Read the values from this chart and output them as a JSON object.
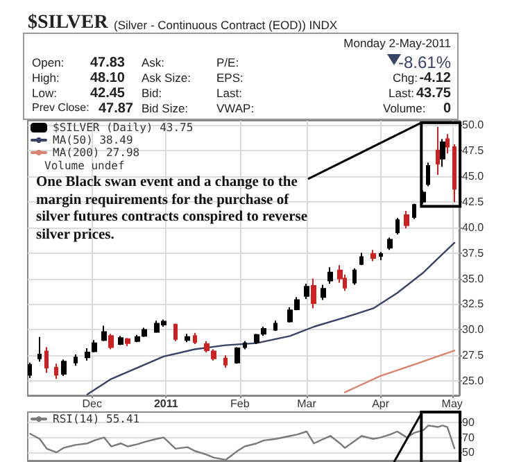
{
  "chart_data": [
    {
      "type": "candlestick",
      "title": "$SILVER",
      "subtitle": "(Silver - Continuous Contract (EOD)) INDX",
      "x": [
        "2010-11-05",
        "2010-11-09",
        "2010-11-12",
        "2010-11-16",
        "2010-11-19",
        "2010-11-24",
        "2010-11-29",
        "2010-12-02",
        "2010-12-06",
        "2010-12-09",
        "2010-12-13",
        "2010-12-16",
        "2010-12-20",
        "2010-12-23",
        "2010-12-28",
        "2010-12-31",
        "2011-01-05",
        "2011-01-10",
        "2011-01-13",
        "2011-01-18",
        "2011-01-21",
        "2011-01-26",
        "2011-01-31",
        "2011-02-03",
        "2011-02-08",
        "2011-02-11",
        "2011-02-16",
        "2011-02-22",
        "2011-02-25",
        "2011-03-01",
        "2011-03-04",
        "2011-03-08",
        "2011-03-11",
        "2011-03-15",
        "2011-03-17",
        "2011-03-21",
        "2011-03-24",
        "2011-03-29",
        "2011-04-01",
        "2011-04-05",
        "2011-04-08",
        "2011-04-12",
        "2011-04-15",
        "2011-04-19",
        "2011-04-21",
        "2011-04-25",
        "2011-04-27",
        "2011-04-29",
        "2011-05-02"
      ],
      "series": [
        {
          "name": "$SILVER (Daily) 43.75",
          "type": "candlestick",
          "colors": [
            "#000000",
            "#000000",
            "#cc2222",
            "#cc2222",
            "#000000",
            "#000000",
            "#000000",
            "#000000",
            "#000000",
            "#cc2222",
            "#000000",
            "#cc2222",
            "#000000",
            "#000000",
            "#000000",
            "#000000",
            "#cc2222",
            "#000000",
            "#cc2222",
            "#cc2222",
            "#cc2222",
            "#cc2222",
            "#000000",
            "#000000",
            "#000000",
            "#000000",
            "#000000",
            "#000000",
            "#000000",
            "#000000",
            "#cc2222",
            "#000000",
            "#000000",
            "#cc2222",
            "#cc2222",
            "#000000",
            "#000000",
            "#cc2222",
            "#000000",
            "#000000",
            "#000000",
            "#cc2222",
            "#000000",
            "#000000",
            "#000000",
            "#cc2222",
            "#000000",
            "#cc2222",
            "#cc2222"
          ],
          "ohlc": [
            [
              25.6,
              26.8,
              25.3,
              26.6
            ],
            [
              27.2,
              29.3,
              26.9,
              27.6
            ],
            [
              27.9,
              28.3,
              25.8,
              26.3
            ],
            [
              26.3,
              26.7,
              25.2,
              25.6
            ],
            [
              25.7,
              27.1,
              25.5,
              26.9
            ],
            [
              26.8,
              27.6,
              26.5,
              27.3
            ],
            [
              27.3,
              28.2,
              27.0,
              27.8
            ],
            [
              27.9,
              29.0,
              27.8,
              28.7
            ],
            [
              29.0,
              30.4,
              28.9,
              29.8
            ],
            [
              29.4,
              29.6,
              28.1,
              28.3
            ],
            [
              28.6,
              29.4,
              28.5,
              29.2
            ],
            [
              29.1,
              29.2,
              28.4,
              28.7
            ],
            [
              28.9,
              29.5,
              28.8,
              29.3
            ],
            [
              29.4,
              30.2,
              29.3,
              30.0
            ],
            [
              29.8,
              30.9,
              29.7,
              30.6
            ],
            [
              30.5,
              31.0,
              30.3,
              30.8
            ],
            [
              30.5,
              30.6,
              28.9,
              29.1
            ],
            [
              29.0,
              29.6,
              28.8,
              29.3
            ],
            [
              29.4,
              29.7,
              28.6,
              28.8
            ],
            [
              28.6,
              28.9,
              27.8,
              28.0
            ],
            [
              27.9,
              28.1,
              27.0,
              27.2
            ],
            [
              27.2,
              27.5,
              26.3,
              26.6
            ],
            [
              26.8,
              28.3,
              26.7,
              28.2
            ],
            [
              28.3,
              28.9,
              28.1,
              28.7
            ],
            [
              28.8,
              29.6,
              28.6,
              29.5
            ],
            [
              29.6,
              30.3,
              29.4,
              30.1
            ],
            [
              30.0,
              30.9,
              29.9,
              30.6
            ],
            [
              30.8,
              32.2,
              30.7,
              31.9
            ],
            [
              32.0,
              33.2,
              31.9,
              32.9
            ],
            [
              33.3,
              34.5,
              33.0,
              34.2
            ],
            [
              34.3,
              35.0,
              32.1,
              32.6
            ],
            [
              33.2,
              34.4,
              32.9,
              34.0
            ],
            [
              34.8,
              36.1,
              34.5,
              35.6
            ],
            [
              35.8,
              36.3,
              34.6,
              35.0
            ],
            [
              35.0,
              35.4,
              33.8,
              34.1
            ],
            [
              34.6,
              36.0,
              34.4,
              35.8
            ],
            [
              36.4,
              37.5,
              36.3,
              37.1
            ],
            [
              37.4,
              37.8,
              36.7,
              37.0
            ],
            [
              37.2,
              37.6,
              36.8,
              37.4
            ],
            [
              38.0,
              39.0,
              37.8,
              38.8
            ],
            [
              39.5,
              40.9,
              39.3,
              40.7
            ],
            [
              41.2,
              41.6,
              39.9,
              40.2
            ],
            [
              41.0,
              42.3,
              40.8,
              42.2
            ],
            [
              42.5,
              43.6,
              42.3,
              43.4
            ],
            [
              44.2,
              46.3,
              44.0,
              46.0
            ],
            [
              47.5,
              49.8,
              45.1,
              46.2
            ],
            [
              46.7,
              48.6,
              45.9,
              48.3
            ],
            [
              48.6,
              49.1,
              47.2,
              47.87
            ],
            [
              47.83,
              48.1,
              42.45,
              43.75
            ]
          ]
        },
        {
          "name": "MA(50) 38.49",
          "type": "line",
          "color": "#3a4266",
          "x": [
            "2010-11-29",
            "2010-12-09",
            "2010-12-20",
            "2010-12-31",
            "2011-01-13",
            "2011-01-26",
            "2011-02-08",
            "2011-02-22",
            "2011-03-04",
            "2011-03-17",
            "2011-03-29",
            "2011-04-08",
            "2011-04-19",
            "2011-04-27",
            "2011-05-02"
          ],
          "values": [
            23.7,
            25.2,
            26.3,
            27.4,
            28.1,
            28.5,
            28.7,
            29.4,
            30.3,
            31.2,
            32.1,
            33.6,
            35.6,
            37.4,
            38.49
          ]
        },
        {
          "name": "MA(200) 27.98",
          "type": "line",
          "color": "#d9826e",
          "x": [
            "2011-03-17",
            "2011-04-01",
            "2011-04-15",
            "2011-05-02"
          ],
          "values": [
            23.9,
            25.5,
            26.6,
            27.98
          ]
        }
      ],
      "xlim": [
        "2010-11-04",
        "2011-05-04"
      ],
      "xticks": [
        {
          "value": "2010-12-01",
          "label": "Dec"
        },
        {
          "value": "2011-01-01",
          "label": "2011"
        },
        {
          "value": "2011-02-01",
          "label": "Feb"
        },
        {
          "value": "2011-03-01",
          "label": "Mar"
        },
        {
          "value": "2011-04-01",
          "label": "Apr"
        },
        {
          "value": "2011-05-01",
          "label": "May"
        }
      ],
      "ylim": [
        23.6,
        50.4
      ],
      "yticks": [
        {
          "value": 25,
          "label": "25.0"
        },
        {
          "value": 27.5,
          "label": "27.5"
        },
        {
          "value": 30,
          "label": "30.0"
        },
        {
          "value": 32.5,
          "label": "32.5"
        },
        {
          "value": 35,
          "label": "35.0"
        },
        {
          "value": 37.5,
          "label": "37.5"
        },
        {
          "value": 40,
          "label": "40.0"
        },
        {
          "value": 42.5,
          "label": "42.5"
        },
        {
          "value": 45,
          "label": "45.0"
        },
        {
          "value": 47.5,
          "label": "47.5"
        },
        {
          "value": 50,
          "label": "50.0"
        }
      ],
      "grid": true,
      "legend": "top left",
      "annotations": [
        "Monday  2-May-2011",
        "Open:",
        "47.83",
        "Ask:",
        "P/E:",
        "-8.61%",
        "High:",
        "48.10",
        "Ask Size:",
        "EPS:",
        "Chg:",
        "-4.12",
        "Low:",
        "42.45",
        "Bid:",
        "Last:",
        "Last:",
        "43.75",
        "Prev Close:",
        "47.87",
        "Bid Size:",
        "VWAP:",
        "Volume:",
        "0",
        "Volume undef",
        "One Black swan event and a change to the margin requirements for the purchase of silver futures contracts conspired to reverse silver prices."
      ]
    },
    {
      "type": "line",
      "x": [
        "2010-11-05",
        "2010-11-09",
        "2010-11-12",
        "2010-11-16",
        "2010-11-19",
        "2010-11-24",
        "2010-11-29",
        "2010-12-02",
        "2010-12-06",
        "2010-12-09",
        "2010-12-13",
        "2010-12-16",
        "2010-12-20",
        "2010-12-23",
        "2010-12-28",
        "2010-12-31",
        "2011-01-05",
        "2011-01-10",
        "2011-01-13",
        "2011-01-18",
        "2011-01-21",
        "2011-01-26",
        "2011-01-31",
        "2011-02-03",
        "2011-02-08",
        "2011-02-11",
        "2011-02-16",
        "2011-02-22",
        "2011-02-25",
        "2011-03-01",
        "2011-03-04",
        "2011-03-08",
        "2011-03-11",
        "2011-03-15",
        "2011-03-17",
        "2011-03-21",
        "2011-03-24",
        "2011-03-29",
        "2011-04-01",
        "2011-04-05",
        "2011-04-08",
        "2011-04-12",
        "2011-04-15",
        "2011-04-19",
        "2011-04-21",
        "2011-04-25",
        "2011-04-27",
        "2011-04-29",
        "2011-05-02"
      ],
      "series": [
        {
          "name": "RSI(14) 55.41",
          "color": "#7a7a7a",
          "values": [
            75,
            68,
            55,
            50,
            56,
            60,
            62,
            66,
            70,
            58,
            62,
            58,
            61,
            64,
            68,
            70,
            55,
            57,
            52,
            47,
            43,
            40,
            52,
            58,
            62,
            66,
            68,
            72,
            74,
            78,
            62,
            68,
            72,
            62,
            56,
            65,
            72,
            68,
            70,
            74,
            78,
            70,
            76,
            80,
            86,
            84,
            86,
            84,
            55.41
          ]
        }
      ],
      "xlim": [
        "2010-11-04",
        "2011-05-04"
      ],
      "ylim": [
        39,
        104
      ],
      "yticks": [
        50,
        70,
        90
      ],
      "tick_labels": "y",
      "grid": true,
      "legend": "top left"
    }
  ]
}
